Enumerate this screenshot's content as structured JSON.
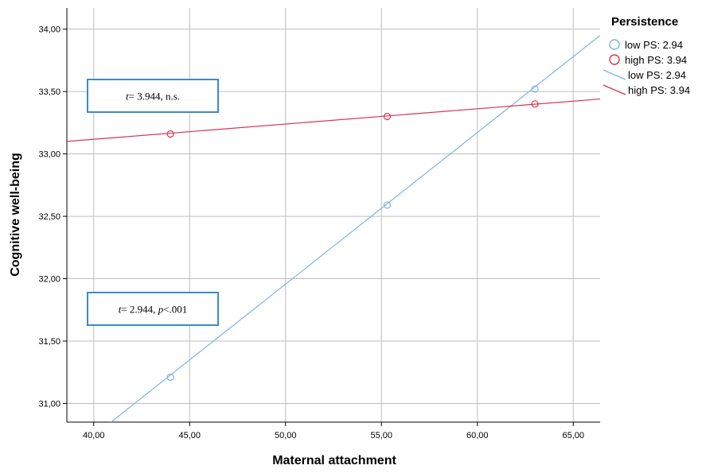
{
  "chart_data": {
    "type": "scatter",
    "xlabel": "Maternal attachment",
    "ylabel": "Cognitive well-being",
    "xlim": [
      38.6,
      66.4
    ],
    "ylim": [
      30.85,
      34.17
    ],
    "x_ticks": [
      "40,00",
      "45,00",
      "50,00",
      "55,00",
      "60,00",
      "65,00"
    ],
    "x_tick_values": [
      40,
      45,
      50,
      55,
      60,
      65
    ],
    "y_ticks": [
      "34,00",
      "33,50",
      "33,00",
      "32,50",
      "32,00",
      "31,50",
      "31,00"
    ],
    "y_tick_values": [
      34.0,
      33.5,
      33.0,
      32.5,
      32.0,
      31.5,
      31.0
    ],
    "grid": true,
    "legend": {
      "title": "Persistence",
      "position": "top-right",
      "entries": [
        {
          "label": "low PS: 2.94",
          "kind": "marker",
          "color": "#7eb5e6"
        },
        {
          "label": "high PS: 3.94",
          "kind": "marker",
          "color": "#d9334f"
        },
        {
          "label": "low PS: 2.94",
          "kind": "line",
          "color": "#7eb5e6"
        },
        {
          "label": "high PS: 3.94",
          "kind": "line",
          "color": "#d9334f"
        }
      ]
    },
    "series": [
      {
        "name": "low PS: 2.94",
        "color": "#7eb5e6",
        "points": {
          "x": [
            44.0,
            55.3,
            63.0
          ],
          "y": [
            31.21,
            32.59,
            33.52
          ]
        },
        "fit_line": {
          "x": [
            40.9,
            66.4
          ],
          "y": [
            30.85,
            33.95
          ]
        }
      },
      {
        "name": "high PS: 3.94",
        "color": "#d9334f",
        "points": {
          "x": [
            44.0,
            55.3,
            63.0
          ],
          "y": [
            33.16,
            33.3,
            33.4
          ]
        },
        "fit_line": {
          "x": [
            38.6,
            66.4
          ],
          "y": [
            33.1,
            33.44
          ]
        }
      }
    ],
    "annotations": [
      {
        "parts": [
          {
            "text": "t",
            "italic": true
          },
          {
            "text": "= 3.944, n.s.",
            "italic": false
          }
        ],
        "near_series": "high PS: 3.94"
      },
      {
        "parts": [
          {
            "text": "t",
            "italic": true
          },
          {
            "text": "= 2.944, ",
            "italic": false
          },
          {
            "text": "p",
            "italic": true
          },
          {
            "text": "<.001",
            "italic": false
          }
        ],
        "near_series": "low PS: 2.94"
      }
    ],
    "annotation_box_color": "#3a8cc6"
  }
}
